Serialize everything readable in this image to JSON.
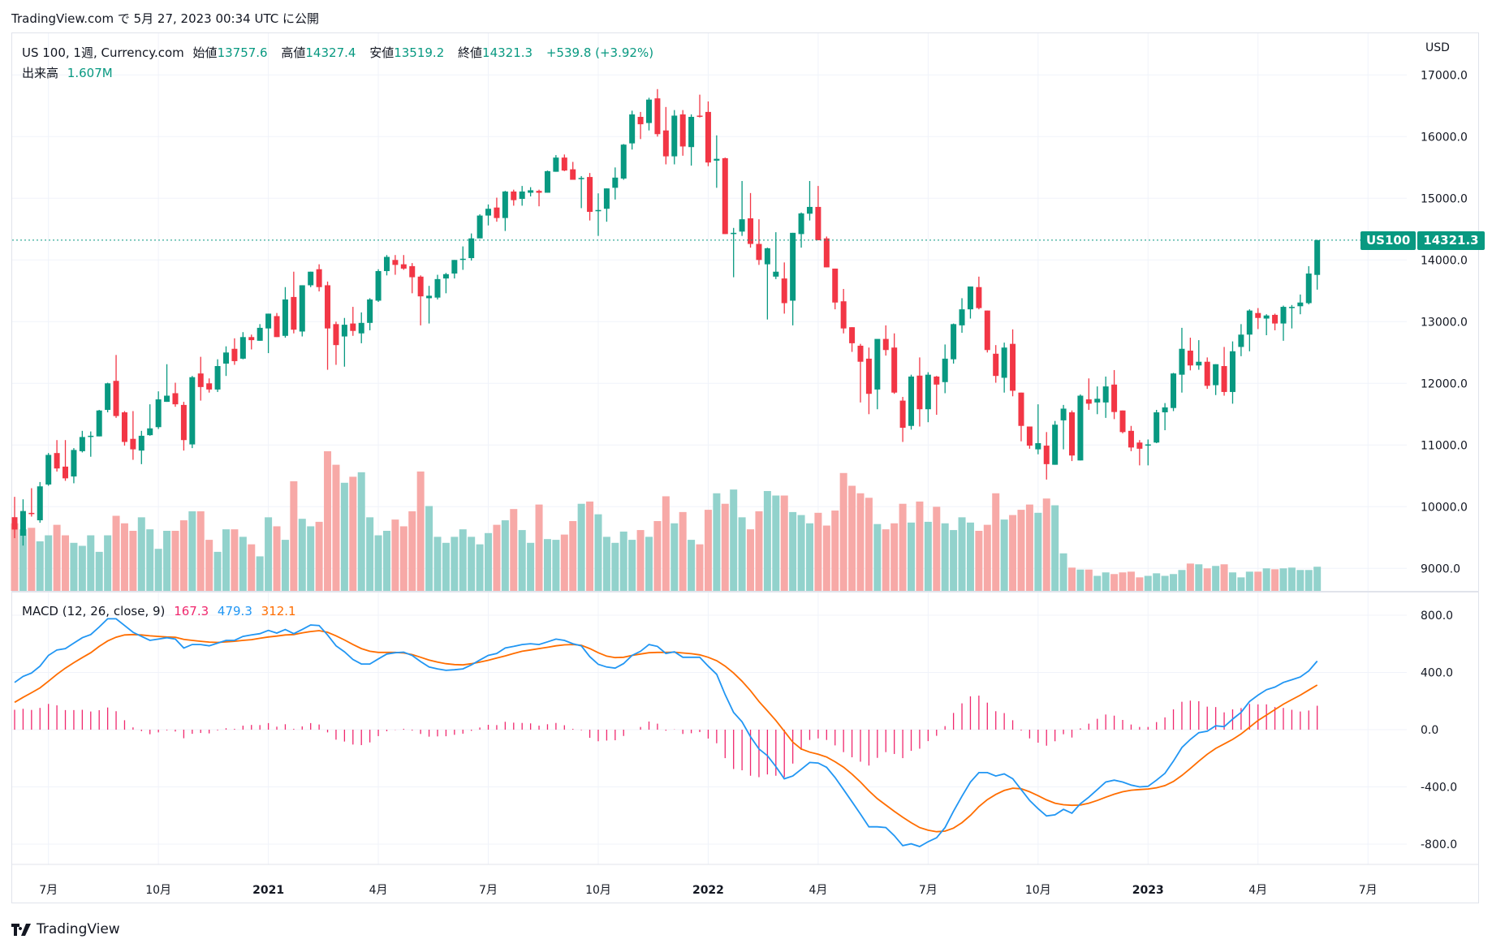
{
  "published_line": "TradingView.com で 5月 27, 2023 00:34 UTC に公開",
  "legend": {
    "symbol": "US 100, 1週, Currency.com",
    "open_label": "始値",
    "open": "13757.6",
    "high_label": "高値",
    "high": "14327.4",
    "low_label": "安値",
    "low": "13519.2",
    "close_label": "終値",
    "close": "14321.3",
    "change": "+539.8 (+3.92%)",
    "volume_label": "出来高",
    "volume": "1.607M"
  },
  "macd_legend": {
    "title": "MACD (12, 26, close, 9)",
    "histogram": "167.3",
    "macd": "479.3",
    "signal": "312.1"
  },
  "price_axis": {
    "currency": "USD",
    "ticks": [
      "17000.0",
      "16000.0",
      "15000.0",
      "14000.0",
      "13000.0",
      "12000.0",
      "11000.0",
      "10000.0",
      "9000.0"
    ]
  },
  "macd_axis": {
    "ticks": [
      "800.0",
      "400.0",
      "0.0",
      "-400.0",
      "-800.0"
    ]
  },
  "time_axis": {
    "labels": [
      "7月",
      "10月",
      "2021",
      "4月",
      "7月",
      "10月",
      "2022",
      "4月",
      "7月",
      "10月",
      "2023",
      "4月",
      "7月"
    ],
    "bold": [
      "2021",
      "2022",
      "2023"
    ]
  },
  "price_badge": {
    "symbol": "US100",
    "price": "14321.3"
  },
  "footer": {
    "brand": "TradingView"
  },
  "colors": {
    "up": "#089981",
    "down": "#F23645",
    "vol_up": "#92D2CC",
    "vol_down": "#F7A9A7",
    "macd": "#2196F3",
    "signal": "#FF6D00",
    "histogram": "#F0286E"
  },
  "chart_data": {
    "type": "candlestick",
    "interval": "1週",
    "price_range": [
      8800,
      17300
    ],
    "macd_range": [
      -920,
      900
    ],
    "ohlc": [
      [
        9830,
        10160,
        9490,
        9630
      ],
      [
        9530,
        10120,
        9370,
        9930
      ],
      [
        9900,
        10300,
        9840,
        9880
      ],
      [
        9780,
        10400,
        9740,
        10330
      ],
      [
        10360,
        10870,
        10340,
        10840
      ],
      [
        10870,
        11080,
        10570,
        10620
      ],
      [
        10650,
        11080,
        10420,
        10460
      ],
      [
        10490,
        10950,
        10380,
        10920
      ],
      [
        10900,
        11230,
        10880,
        11130
      ],
      [
        11140,
        11220,
        10810,
        11150
      ],
      [
        11140,
        11570,
        11140,
        11560
      ],
      [
        11570,
        12010,
        11530,
        12000
      ],
      [
        12040,
        12460,
        11440,
        11470
      ],
      [
        11530,
        11550,
        10990,
        11050
      ],
      [
        11100,
        11550,
        10760,
        10930
      ],
      [
        10910,
        11230,
        10690,
        11150
      ],
      [
        11160,
        11660,
        11150,
        11270
      ],
      [
        11290,
        11870,
        11260,
        11740
      ],
      [
        11700,
        12310,
        11700,
        11800
      ],
      [
        11840,
        12010,
        11620,
        11660
      ],
      [
        11650,
        11700,
        10910,
        11080
      ],
      [
        11010,
        12120,
        10950,
        12100
      ],
      [
        12160,
        12430,
        11720,
        11940
      ],
      [
        12000,
        12080,
        11850,
        11900
      ],
      [
        11900,
        12390,
        11860,
        12280
      ],
      [
        12320,
        12600,
        12120,
        12500
      ],
      [
        12560,
        12730,
        12300,
        12360
      ],
      [
        12400,
        12830,
        12390,
        12750
      ],
      [
        12750,
        12790,
        12550,
        12700
      ],
      [
        12690,
        12960,
        12690,
        12900
      ],
      [
        12890,
        13130,
        12490,
        13130
      ],
      [
        13090,
        13140,
        12750,
        12750
      ],
      [
        12770,
        13560,
        12740,
        13360
      ],
      [
        13400,
        13810,
        12810,
        12870
      ],
      [
        12840,
        13590,
        12760,
        13590
      ],
      [
        13590,
        13810,
        13560,
        13810
      ],
      [
        13850,
        13930,
        13490,
        13560
      ],
      [
        13590,
        13650,
        12220,
        12890
      ],
      [
        12960,
        13000,
        12300,
        12620
      ],
      [
        12760,
        13060,
        12270,
        12950
      ],
      [
        12970,
        13240,
        12770,
        12850
      ],
      [
        12810,
        13150,
        12650,
        12980
      ],
      [
        12980,
        13380,
        12860,
        13360
      ],
      [
        13340,
        13850,
        13320,
        13820
      ],
      [
        13820,
        14080,
        13750,
        14050
      ],
      [
        14000,
        14080,
        13760,
        13920
      ],
      [
        13930,
        14080,
        13840,
        13860
      ],
      [
        13900,
        13950,
        13460,
        13720
      ],
      [
        13730,
        13750,
        12940,
        13410
      ],
      [
        13380,
        13580,
        12970,
        13420
      ],
      [
        13390,
        13760,
        13360,
        13690
      ],
      [
        13700,
        13790,
        13460,
        13770
      ],
      [
        13780,
        14000,
        13700,
        14000
      ],
      [
        14010,
        14220,
        13840,
        14020
      ],
      [
        14030,
        14430,
        13990,
        14350
      ],
      [
        14350,
        14740,
        14350,
        14720
      ],
      [
        14720,
        14900,
        14560,
        14830
      ],
      [
        14850,
        15010,
        14620,
        14680
      ],
      [
        14680,
        15120,
        14470,
        15110
      ],
      [
        15110,
        15140,
        14880,
        14970
      ],
      [
        14990,
        15200,
        14880,
        15110
      ],
      [
        15090,
        15180,
        15030,
        15130
      ],
      [
        15120,
        15140,
        14870,
        15090
      ],
      [
        15090,
        15450,
        15090,
        15440
      ],
      [
        15430,
        15700,
        15430,
        15660
      ],
      [
        15660,
        15710,
        15440,
        15450
      ],
      [
        15470,
        15590,
        15300,
        15300
      ],
      [
        15310,
        15360,
        14840,
        15330
      ],
      [
        15345,
        15410,
        14640,
        14780
      ],
      [
        14790,
        15080,
        14390,
        14810
      ],
      [
        14830,
        15160,
        14620,
        15160
      ],
      [
        15170,
        15500,
        14980,
        15335
      ],
      [
        15320,
        15880,
        15300,
        15870
      ],
      [
        15890,
        16420,
        15790,
        16360
      ],
      [
        16320,
        16400,
        15960,
        16200
      ],
      [
        16220,
        16630,
        16100,
        16600
      ],
      [
        16620,
        16770,
        16000,
        16040
      ],
      [
        16100,
        16480,
        15550,
        15680
      ],
      [
        15680,
        16430,
        15550,
        16340
      ],
      [
        16360,
        16430,
        15690,
        15840
      ],
      [
        15830,
        16360,
        15530,
        16320
      ],
      [
        16340,
        16680,
        16310,
        16330
      ],
      [
        16400,
        16570,
        15520,
        15580
      ],
      [
        15610,
        16020,
        15170,
        15640
      ],
      [
        15650,
        15660,
        14420,
        14420
      ],
      [
        14420,
        14520,
        13720,
        14440
      ],
      [
        14460,
        15280,
        14390,
        14660
      ],
      [
        14675,
        15085,
        14200,
        14260
      ],
      [
        14260,
        14660,
        13920,
        14000
      ],
      [
        13930,
        14200,
        13035,
        14190
      ],
      [
        13730,
        14450,
        13690,
        13810
      ],
      [
        13700,
        13960,
        13130,
        13300
      ],
      [
        13340,
        14440,
        12940,
        14440
      ],
      [
        14420,
        14770,
        14200,
        14755
      ],
      [
        14750,
        15280,
        14640,
        14860
      ],
      [
        14860,
        15200,
        14320,
        14320
      ],
      [
        14350,
        14380,
        13880,
        13880
      ],
      [
        13860,
        13860,
        13200,
        13310
      ],
      [
        13330,
        13530,
        12810,
        12890
      ],
      [
        12910,
        12910,
        12510,
        12650
      ],
      [
        12610,
        12640,
        11690,
        12350
      ],
      [
        12400,
        12580,
        11500,
        11830
      ],
      [
        11900,
        12700,
        11580,
        12720
      ],
      [
        12720,
        12940,
        12450,
        12540
      ],
      [
        12580,
        12810,
        11830,
        11850
      ],
      [
        11720,
        11780,
        11050,
        11280
      ],
      [
        11310,
        12140,
        11250,
        12110
      ],
      [
        12125,
        12420,
        11300,
        11580
      ],
      [
        11580,
        12180,
        11370,
        12140
      ],
      [
        12110,
        12120,
        11490,
        11980
      ],
      [
        12020,
        12630,
        11840,
        12400
      ],
      [
        12390,
        12970,
        12320,
        12960
      ],
      [
        12940,
        13380,
        12820,
        13200
      ],
      [
        13200,
        13570,
        13050,
        13570
      ],
      [
        13560,
        13730,
        13200,
        13220
      ],
      [
        13180,
        13180,
        12500,
        12540
      ],
      [
        12480,
        12620,
        12010,
        12120
      ],
      [
        12090,
        12660,
        11850,
        12580
      ],
      [
        12640,
        12875,
        11790,
        11880
      ],
      [
        11850,
        11850,
        11060,
        11310
      ],
      [
        11300,
        11300,
        10940,
        10990
      ],
      [
        10930,
        11660,
        10850,
        11030
      ],
      [
        10990,
        11210,
        10440,
        10690
      ],
      [
        10680,
        11390,
        10680,
        11330
      ],
      [
        11400,
        11650,
        10930,
        11590
      ],
      [
        11530,
        11560,
        10740,
        10830
      ],
      [
        10750,
        11820,
        10750,
        11800
      ],
      [
        11740,
        12080,
        11570,
        11670
      ],
      [
        11690,
        11950,
        11500,
        11750
      ],
      [
        11690,
        12110,
        11440,
        11950
      ],
      [
        11980,
        12215,
        11420,
        11535
      ],
      [
        11560,
        11560,
        11190,
        11210
      ],
      [
        11230,
        11310,
        10900,
        10960
      ],
      [
        11040,
        11080,
        10670,
        10940
      ],
      [
        10990,
        11090,
        10670,
        11010
      ],
      [
        11040,
        11570,
        11030,
        11530
      ],
      [
        11530,
        11680,
        11240,
        11610
      ],
      [
        11600,
        12170,
        11550,
        12160
      ],
      [
        12140,
        12900,
        11850,
        12560
      ],
      [
        12530,
        12740,
        12210,
        12290
      ],
      [
        12290,
        12700,
        12220,
        12350
      ],
      [
        12350,
        12420,
        11910,
        11960
      ],
      [
        11970,
        12310,
        11810,
        12310
      ],
      [
        12280,
        12590,
        11800,
        11860
      ],
      [
        11860,
        12680,
        11670,
        12520
      ],
      [
        12590,
        12960,
        12440,
        12790
      ],
      [
        12790,
        13200,
        12520,
        13180
      ],
      [
        13140,
        13220,
        12880,
        13060
      ],
      [
        13050,
        13120,
        12780,
        13100
      ],
      [
        13110,
        13130,
        12860,
        12970
      ],
      [
        12970,
        13260,
        12690,
        13240
      ],
      [
        13220,
        13270,
        12890,
        13240
      ],
      [
        13250,
        13440,
        13120,
        13310
      ],
      [
        13300,
        13900,
        13280,
        13780
      ],
      [
        13757.6,
        14327.4,
        13519.2,
        14321.3
      ]
    ],
    "volume_millions": [
      4.5,
      4.1,
      4.2,
      3.3,
      3.7,
      4.4,
      3.7,
      3.2,
      3.0,
      3.7,
      2.6,
      3.7,
      5.0,
      4.5,
      4.0,
      4.9,
      4.1,
      2.8,
      4.0,
      4.0,
      4.7,
      5.3,
      5.3,
      3.4,
      2.6,
      4.1,
      4.1,
      3.6,
      3.1,
      2.3,
      4.9,
      4.3,
      3.4,
      7.3,
      4.8,
      4.3,
      4.6,
      9.3,
      8.4,
      7.2,
      7.6,
      7.9,
      4.9,
      3.7,
      4.0,
      4.75,
      4.3,
      5.3,
      7.95,
      5.65,
      3.6,
      3.2,
      3.6,
      4.1,
      3.6,
      3.1,
      3.85,
      4.4,
      4.7,
      5.45,
      4.05,
      3.2,
      5.75,
      3.45,
      3.4,
      3.75,
      4.65,
      5.8,
      5.95,
      5.1,
      3.6,
      3.2,
      3.95,
      3.4,
      4.05,
      3.6,
      4.65,
      6.3,
      4.5,
      5.25,
      3.4,
      3.1,
      5.4,
      6.5,
      5.8,
      6.75,
      4.9,
      4.1,
      5.3,
      6.65,
      6.35,
      6.35,
      5.25,
      5.05,
      4.5,
      5.2,
      4.35,
      5.35,
      7.85,
      7.0,
      6.5,
      6.2,
      4.45,
      4.1,
      4.5,
      5.8,
      4.55,
      5.95,
      4.6,
      5.6,
      4.5,
      4.05,
      4.9,
      4.55,
      4.0,
      4.4,
      6.5,
      4.75,
      5.05,
      5.4,
      5.75,
      5.2,
      6.15,
      5.7,
      2.5,
      1.55,
      1.42,
      1.42,
      1.0,
      1.23,
      1.12,
      1.23,
      1.28,
      0.9,
      1.0,
      1.17,
      1.0,
      1.12,
      1.39,
      1.82,
      1.77,
      1.5,
      1.66,
      1.77,
      1.23,
      0.9,
      1.28,
      1.28,
      1.5,
      1.44,
      1.5,
      1.55,
      1.39,
      1.39,
      1.607
    ],
    "macd": [
      330,
      372,
      396,
      444,
      519,
      557,
      567,
      605,
      643,
      665,
      718,
      775,
      775,
      728,
      681,
      652,
      624,
      633,
      643,
      633,
      571,
      595,
      595,
      586,
      605,
      624,
      624,
      652,
      662,
      671,
      694,
      675,
      700,
      671,
      700,
      732,
      728,
      662,
      586,
      544,
      491,
      459,
      459,
      495,
      529,
      538,
      542,
      519,
      476,
      438,
      425,
      415,
      419,
      425,
      453,
      487,
      519,
      533,
      571,
      582,
      595,
      601,
      595,
      614,
      633,
      624,
      601,
      586,
      510,
      457,
      438,
      430,
      462,
      519,
      548,
      595,
      582,
      533,
      544,
      506,
      506,
      506,
      444,
      387,
      245,
      121,
      55,
      -49,
      -135,
      -182,
      -258,
      -343,
      -324,
      -277,
      -229,
      -233,
      -263,
      -334,
      -419,
      -504,
      -590,
      -679,
      -679,
      -684,
      -741,
      -811,
      -798,
      -817,
      -783,
      -756,
      -684,
      -571,
      -466,
      -366,
      -300,
      -300,
      -324,
      -309,
      -343,
      -419,
      -495,
      -552,
      -603,
      -595,
      -557,
      -584,
      -518,
      -472,
      -419,
      -366,
      -353,
      -366,
      -387,
      -400,
      -396,
      -353,
      -305,
      -220,
      -125,
      -68,
      -21,
      -11,
      27,
      21,
      74,
      121,
      197,
      241,
      279,
      298,
      330,
      349,
      368,
      411,
      479.3
    ],
    "signal": [
      191,
      226,
      258,
      292,
      339,
      387,
      430,
      468,
      504,
      538,
      582,
      620,
      646,
      662,
      665,
      662,
      656,
      652,
      648,
      646,
      631,
      624,
      618,
      612,
      610,
      614,
      618,
      624,
      629,
      639,
      648,
      654,
      662,
      665,
      677,
      686,
      692,
      681,
      656,
      627,
      595,
      567,
      548,
      540,
      540,
      540,
      536,
      525,
      506,
      487,
      472,
      461,
      455,
      453,
      461,
      472,
      485,
      501,
      516,
      533,
      548,
      557,
      567,
      576,
      586,
      593,
      595,
      590,
      567,
      538,
      514,
      504,
      506,
      519,
      529,
      538,
      540,
      540,
      542,
      536,
      531,
      523,
      506,
      482,
      444,
      396,
      339,
      273,
      197,
      131,
      64,
      -11,
      -87,
      -135,
      -157,
      -172,
      -191,
      -224,
      -262,
      -311,
      -366,
      -428,
      -482,
      -527,
      -571,
      -612,
      -650,
      -684,
      -703,
      -713,
      -709,
      -688,
      -650,
      -599,
      -538,
      -489,
      -453,
      -425,
      -409,
      -413,
      -434,
      -461,
      -491,
      -514,
      -525,
      -529,
      -527,
      -514,
      -495,
      -472,
      -451,
      -434,
      -423,
      -419,
      -415,
      -406,
      -391,
      -362,
      -320,
      -271,
      -220,
      -172,
      -131,
      -100,
      -68,
      -30,
      17,
      64,
      102,
      140,
      178,
      210,
      241,
      277,
      312.1
    ]
  }
}
